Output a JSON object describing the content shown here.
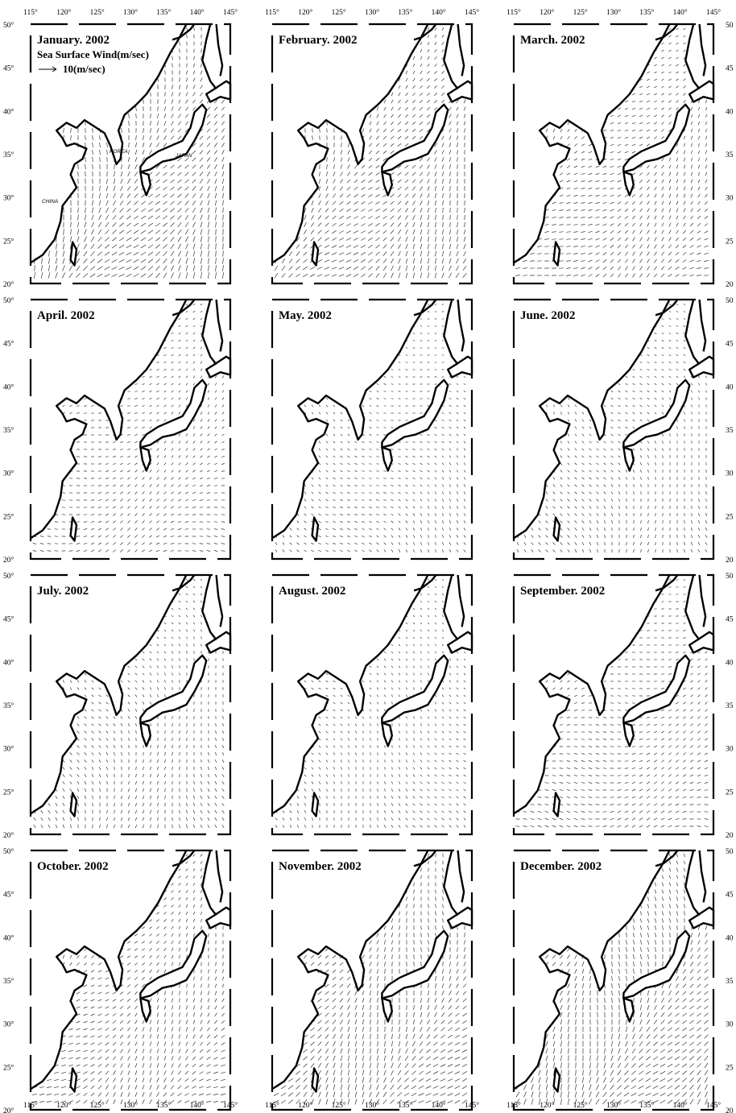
{
  "figure": {
    "lon_ticks": [
      "115°",
      "120°",
      "125°",
      "130°",
      "135°",
      "140°",
      "145°"
    ],
    "lat_ticks": [
      "20°",
      "25°",
      "30°",
      "35°",
      "40°",
      "45°",
      "50°"
    ],
    "lat_ticks_right": [
      "20",
      "25",
      "30",
      "35",
      "40",
      "45",
      "50"
    ],
    "lon_range": [
      115,
      145
    ],
    "lat_range": [
      20,
      50
    ]
  },
  "legend": {
    "title": "Sea Surface Wind(m/sec)",
    "scale_label": "10(m/sec)"
  },
  "region_labels": {
    "korea": "KOREA",
    "japan": "JAPAN",
    "china": "CHINA"
  },
  "panels": [
    {
      "title": "January. 2002",
      "dir": 200,
      "spd": 1.0
    },
    {
      "title": "February. 2002",
      "dir": 205,
      "spd": 0.9
    },
    {
      "title": "March. 2002",
      "dir": 225,
      "spd": 0.75
    },
    {
      "title": "April. 2002",
      "dir": 240,
      "spd": 0.6
    },
    {
      "title": "May. 2002",
      "dir": 300,
      "spd": 0.5
    },
    {
      "title": "June. 2002",
      "dir": 330,
      "spd": 0.55
    },
    {
      "title": "July. 2002",
      "dir": 340,
      "spd": 0.6
    },
    {
      "title": "August. 2002",
      "dir": 320,
      "spd": 0.5
    },
    {
      "title": "September. 2002",
      "dir": 250,
      "spd": 0.65
    },
    {
      "title": "October. 2002",
      "dir": 215,
      "spd": 0.8
    },
    {
      "title": "November. 2002",
      "dir": 205,
      "spd": 0.95
    },
    {
      "title": "December. 2002",
      "dir": 200,
      "spd": 1.0
    }
  ]
}
